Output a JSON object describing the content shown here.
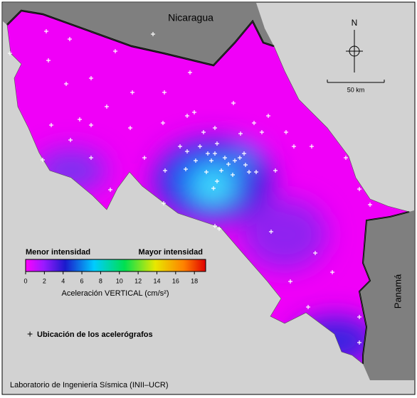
{
  "labels": {
    "nicaragua": "Nicaragua",
    "panama": "Panamá",
    "north": "N",
    "scale": "50 km"
  },
  "colorbar": {
    "low_label": "Menor intensidad",
    "high_label": "Mayor intensidad",
    "title": "Aceleración VERTICAL (cm/s²)",
    "min": 0,
    "max": 19.2,
    "ticks": [
      0,
      2,
      4,
      6,
      8,
      10,
      12,
      14,
      16,
      18
    ]
  },
  "station_legend": "Ubicación de los acelerógrafos",
  "credit": "Laboratorio de Ingeniería Sísmica (INII–UCR)"
}
